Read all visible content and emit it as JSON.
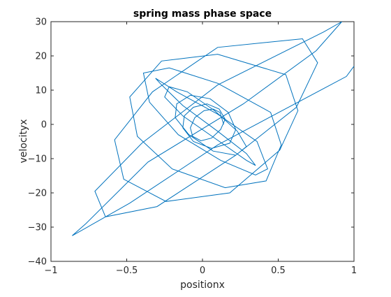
{
  "chart_data": {
    "type": "line",
    "title": "spring mass phase space",
    "xlabel": "positionx",
    "ylabel": "velocityx",
    "xlim": [
      -1,
      1
    ],
    "ylim": [
      -40,
      30
    ],
    "xticks": [
      -1,
      -0.5,
      0,
      0.5,
      1
    ],
    "xtick_labels": [
      "−1",
      "−0.5",
      "0",
      "0.5",
      "1"
    ],
    "yticks": [
      -40,
      -30,
      -20,
      -10,
      0,
      10,
      20,
      30
    ],
    "ytick_labels": [
      "−40",
      "−30",
      "−20",
      "−10",
      "0",
      "10",
      "20",
      "30"
    ],
    "grid": false,
    "line_color": "#0072bd",
    "series": [
      {
        "x": [
          0.14,
          0.115,
          0.07,
          0.01,
          -0.05,
          -0.08,
          -0.065,
          -0.01,
          0.06,
          0.12,
          0.15,
          0.11,
          0.03,
          -0.06,
          -0.12,
          -0.13,
          -0.06,
          0.06,
          0.18,
          0.22,
          0.17,
          0.05,
          -0.08,
          -0.17,
          -0.18,
          -0.09,
          0.07,
          0.22,
          0.29,
          0.23,
          0.08,
          -0.1,
          -0.22,
          -0.25,
          -0.13,
          0.08,
          0.29,
          0.35,
          0.29,
          0.1,
          -0.13,
          -0.28,
          -0.31,
          -0.17,
          0.1,
          0.36,
          0.43,
          0.35,
          0.12,
          -0.16,
          -0.35,
          -0.39,
          -0.22,
          0.1,
          0.45,
          0.52,
          0.42,
          0.15,
          -0.2,
          -0.43,
          -0.48,
          -0.27,
          0.1,
          0.55,
          0.63,
          0.51,
          0.18,
          -0.24,
          -0.52,
          -0.58,
          -0.33,
          0.1,
          0.66,
          0.76,
          0.62,
          0.22,
          -0.3,
          -0.64,
          -0.71,
          -0.4,
          0.1,
          0.8,
          0.92,
          0.75,
          0.27,
          -0.36,
          -0.77,
          -0.86,
          -0.48,
          0.1,
          0.95,
          1.0
        ],
        "y": [
          0,
          3.5,
          4.5,
          4.0,
          2.0,
          -1.0,
          -3.5,
          -4.8,
          -4.0,
          -1.5,
          1.5,
          4.5,
          6.0,
          5.0,
          2.5,
          -1.0,
          -5.0,
          -7.0,
          -5.5,
          -1.5,
          3.5,
          7.5,
          8.5,
          6.0,
          2.0,
          -3.0,
          -7.8,
          -9.0,
          -6.5,
          -2.0,
          4.0,
          9.5,
          11.0,
          8.0,
          2.5,
          -4.0,
          -10.5,
          -12.0,
          -8.5,
          -2.0,
          5.5,
          12.0,
          13.5,
          9.5,
          3.0,
          -5.0,
          -13.0,
          -14.8,
          -10.5,
          -3.0,
          6.5,
          15.0,
          16.5,
          12.0,
          3.5,
          -6.0,
          -16.5,
          -18.5,
          -13.0,
          -3.5,
          8.0,
          18.5,
          20.5,
          14.5,
          4.0,
          -7.5,
          -20.0,
          -22.5,
          -16.0,
          -4.5,
          9.5,
          22.5,
          25.0,
          18.0,
          5.0,
          -9.0,
          -24.0,
          -27.0,
          -19.5,
          -5.5,
          11.5,
          27.0,
          30.0,
          21.5,
          6.0,
          -11.0,
          -29.0,
          -32.5,
          -23.0,
          -6.0,
          14.0,
          17.0
        ]
      }
    ]
  }
}
